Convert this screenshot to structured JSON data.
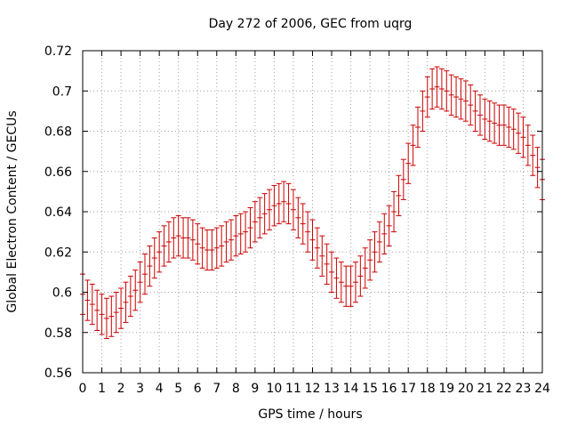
{
  "colors": {
    "series": "#cc0000",
    "grid": "#a0a0a0",
    "frame": "#000000"
  },
  "chart_data": {
    "type": "line",
    "title": "Day 272 of 2006, GEC from uqrg",
    "xlabel": "GPS time / hours",
    "ylabel": "Global Electron Content / GECUs",
    "xlim": [
      0,
      24
    ],
    "ylim": [
      0.56,
      0.72
    ],
    "grid": true,
    "legend": "none",
    "x_ticks": [
      "0",
      "1",
      "2",
      "3",
      "4",
      "5",
      "6",
      "7",
      "8",
      "9",
      "10",
      "11",
      "12",
      "13",
      "14",
      "15",
      "16",
      "17",
      "18",
      "19",
      "20",
      "21",
      "22",
      "23",
      "24"
    ],
    "y_ticks": [
      "0.56",
      "0.58",
      "0.6",
      "0.62",
      "0.64",
      "0.66",
      "0.68",
      "0.7",
      "0.72"
    ],
    "series": [
      {
        "x": [
          0,
          0.25,
          0.5,
          0.75,
          1,
          1.25,
          1.5,
          1.75,
          2,
          2.25,
          2.5,
          2.75,
          3,
          3.25,
          3.5,
          3.75,
          4,
          4.25,
          4.5,
          4.75,
          5,
          5.25,
          5.5,
          5.75,
          6,
          6.25,
          6.5,
          6.75,
          7,
          7.25,
          7.5,
          7.75,
          8,
          8.25,
          8.5,
          8.75,
          9,
          9.25,
          9.5,
          9.75,
          10,
          10.25,
          10.5,
          10.75,
          11,
          11.25,
          11.5,
          11.75,
          12,
          12.25,
          12.5,
          12.75,
          13,
          13.25,
          13.5,
          13.75,
          14,
          14.25,
          14.5,
          14.75,
          15,
          15.25,
          15.5,
          15.75,
          16,
          16.25,
          16.5,
          16.75,
          17,
          17.25,
          17.5,
          17.75,
          18,
          18.25,
          18.5,
          18.75,
          19,
          19.25,
          19.5,
          19.75,
          20,
          20.25,
          20.5,
          20.75,
          21,
          21.25,
          21.5,
          21.75,
          22,
          22.25,
          22.5,
          22.75,
          23,
          23.25,
          23.5,
          23.75,
          24
        ],
        "y": [
          0.599,
          0.596,
          0.594,
          0.591,
          0.589,
          0.587,
          0.588,
          0.59,
          0.592,
          0.595,
          0.598,
          0.601,
          0.605,
          0.609,
          0.613,
          0.617,
          0.62,
          0.623,
          0.625,
          0.627,
          0.628,
          0.627,
          0.627,
          0.626,
          0.624,
          0.622,
          0.621,
          0.621,
          0.622,
          0.623,
          0.625,
          0.626,
          0.628,
          0.629,
          0.63,
          0.632,
          0.635,
          0.637,
          0.639,
          0.641,
          0.643,
          0.644,
          0.645,
          0.644,
          0.641,
          0.637,
          0.634,
          0.63,
          0.626,
          0.622,
          0.618,
          0.614,
          0.61,
          0.607,
          0.605,
          0.603,
          0.603,
          0.605,
          0.608,
          0.612,
          0.616,
          0.62,
          0.625,
          0.629,
          0.633,
          0.64,
          0.648,
          0.656,
          0.664,
          0.673,
          0.682,
          0.69,
          0.697,
          0.701,
          0.702,
          0.701,
          0.7,
          0.698,
          0.697,
          0.696,
          0.695,
          0.693,
          0.69,
          0.688,
          0.686,
          0.685,
          0.684,
          0.683,
          0.683,
          0.682,
          0.681,
          0.679,
          0.677,
          0.673,
          0.668,
          0.662,
          0.656
        ],
        "error": 0.01
      }
    ]
  }
}
